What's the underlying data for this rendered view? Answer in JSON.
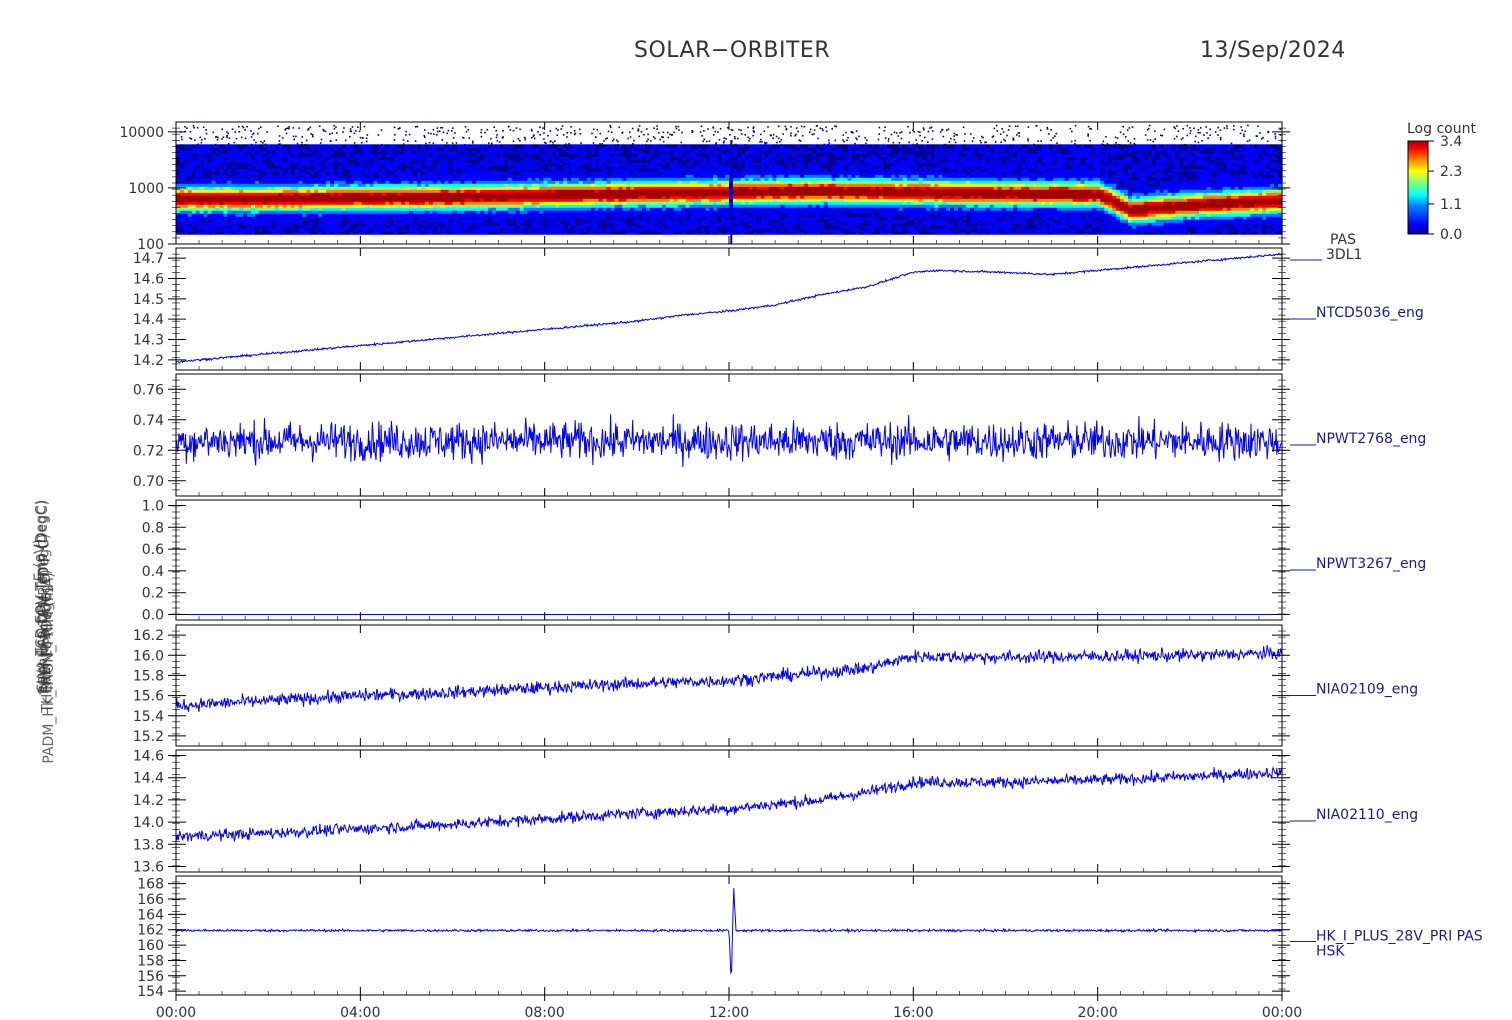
{
  "header": {
    "title": "SOLAR−ORBITER",
    "date": "13/Sep/2024"
  },
  "x_axis": {
    "ticks": [
      "00:00",
      "04:00",
      "08:00",
      "12:00",
      "16:00",
      "20:00",
      "00:00"
    ],
    "range_hours": [
      0,
      24
    ]
  },
  "colorbar": {
    "title": "Log count",
    "ticks": [
      "3.4",
      "2.3",
      "1.1",
      "0.0"
    ],
    "range": [
      0.0,
      3.4
    ],
    "colors": [
      "#000090",
      "#0000ff",
      "#0080ff",
      "#00ffff",
      "#80ff80",
      "#ffff00",
      "#ff8000",
      "#ff0000",
      "#a00000"
    ]
  },
  "colors": {
    "line": "#0000ff",
    "axis": "#000000",
    "label": "#1a1aa0",
    "text": "#333333"
  },
  "chart_data": [
    {
      "type": "heatmap",
      "name": "PAS 3DL1",
      "ylabel": "E (eV)",
      "yscale": "log",
      "ylim": [
        100,
        15000
      ],
      "yticks": [
        "10000",
        "1000",
        "100"
      ],
      "right_label": [
        "PAS",
        "3DL1"
      ],
      "peak_energy_profile": {
        "x": [
          0,
          2,
          4,
          6,
          8,
          10,
          12,
          14,
          16,
          18,
          20,
          20.7,
          22,
          24
        ],
        "y": [
          650,
          650,
          680,
          700,
          750,
          800,
          850,
          900,
          850,
          800,
          780,
          400,
          500,
          600
        ]
      }
    },
    {
      "type": "line",
      "name": "NTCD5036_eng",
      "ylabel": "TCD FOV Temp (DegC)",
      "ylim": [
        14.15,
        14.75
      ],
      "yticks": [
        "14.7",
        "14.6",
        "14.5",
        "14.4",
        "14.3",
        "14.2"
      ],
      "x": [
        0,
        2,
        4,
        6,
        8,
        10,
        11,
        12,
        13,
        14,
        15,
        16,
        16.5,
        18,
        19,
        20,
        21,
        22,
        23,
        24
      ],
      "y": [
        14.19,
        14.23,
        14.27,
        14.31,
        14.35,
        14.39,
        14.42,
        14.44,
        14.47,
        14.52,
        14.56,
        14.63,
        14.64,
        14.63,
        14.62,
        14.64,
        14.66,
        14.68,
        14.7,
        14.72
      ],
      "noise": 0.005
    },
    {
      "type": "line",
      "name": "NPWT2768_eng",
      "ylabel": "SWA EAS DPU Temp (DegC)",
      "ylim": [
        0.69,
        0.77
      ],
      "yticks": [
        "0.76",
        "0.74",
        "0.72",
        "0.70"
      ],
      "x": [
        0,
        24
      ],
      "y": [
        0.726,
        0.726
      ],
      "noise": 0.012
    },
    {
      "type": "line",
      "name": "NPWT3267_eng",
      "ylabel": "RPW HFR TEMP (DegC)",
      "ylim": [
        -0.05,
        1.05
      ],
      "yticks": [
        "1.0",
        "0.8",
        "0.6",
        "0.4",
        "0.2",
        "0.0"
      ],
      "x": [
        0,
        24
      ],
      "y": [
        0.0,
        0.0
      ],
      "noise": 0.0
    },
    {
      "type": "line",
      "name": "NIA02109_eng",
      "ylabel": "THERM 14 (DegC)",
      "ylim": [
        15.1,
        16.3
      ],
      "yticks": [
        "16.2",
        "16.0",
        "15.8",
        "15.6",
        "15.4",
        "15.2"
      ],
      "x": [
        0,
        2,
        4,
        6,
        8,
        10,
        12,
        14,
        15,
        16,
        18,
        20,
        22,
        24
      ],
      "y": [
        15.5,
        15.55,
        15.6,
        15.63,
        15.68,
        15.72,
        15.75,
        15.83,
        15.87,
        15.99,
        15.98,
        15.99,
        16.0,
        16.02
      ],
      "noise": 0.06
    },
    {
      "type": "line",
      "name": "NIA02110_eng",
      "ylabel": "THERM 16 (DegC)",
      "ylim": [
        13.55,
        14.65
      ],
      "yticks": [
        "14.6",
        "14.4",
        "14.2",
        "14.0",
        "13.8",
        "13.6"
      ],
      "x": [
        0,
        2,
        4,
        6,
        8,
        10,
        12,
        14,
        15,
        16,
        18,
        20,
        22,
        24
      ],
      "y": [
        13.87,
        13.9,
        13.94,
        13.98,
        14.03,
        14.08,
        14.12,
        14.2,
        14.27,
        14.36,
        14.36,
        14.38,
        14.41,
        14.45
      ],
      "noise": 0.05
    },
    {
      "type": "line",
      "name": "HK_I_PLUS_28V_PRI PAS HSK",
      "ylabel": "PADM_HK_IMON_PRIM (mA)",
      "ylim": [
        153.5,
        169
      ],
      "yticks": [
        "168",
        "166",
        "164",
        "162",
        "160",
        "158",
        "156",
        "154"
      ],
      "right_label": [
        "HK_I_PLUS_28V_PRI PAS",
        "HSK"
      ],
      "x": [
        0,
        12.0,
        12.05,
        12.1,
        12.15,
        24
      ],
      "y": [
        161.9,
        161.9,
        155.0,
        167.8,
        161.9,
        161.9
      ],
      "noise": 0.15
    }
  ]
}
